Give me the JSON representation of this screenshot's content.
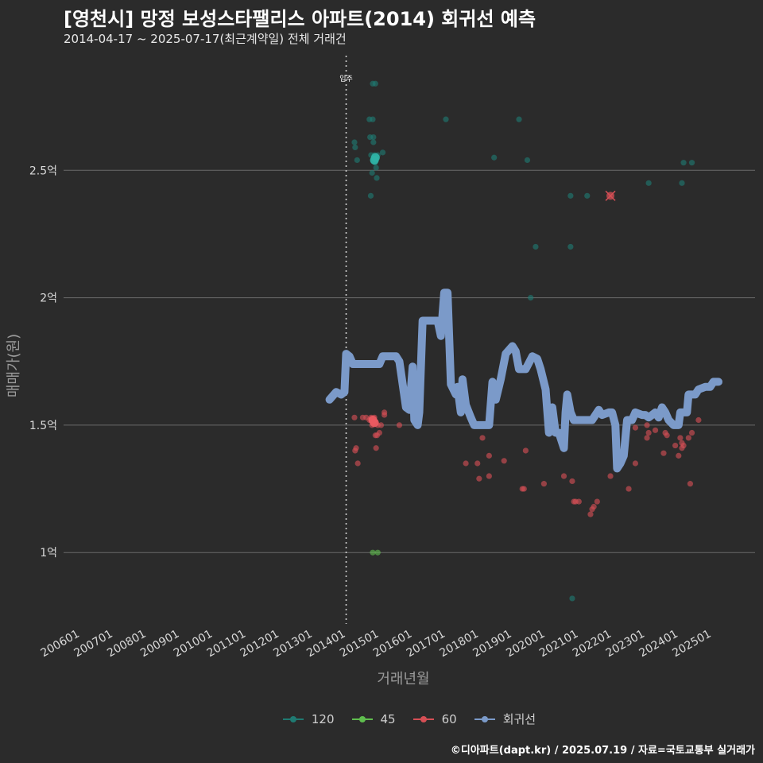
{
  "header": {
    "title": "[영천시] 망정 보성스타팰리스 아파트(2014) 회귀선 예측",
    "subtitle": "2014-04-17 ~ 2025-07-17(최근계약일) 전체 거래건"
  },
  "caption": "©디아파트(dapt.kr) / 2025.07.19 / 자료=국토교통부 실거래가",
  "chart_data": {
    "type": "scatter",
    "title": "[영천시] 망정 보성스타팰리스 아파트(2014) 회귀선 예측",
    "subtitle": "2014-04-17 ~ 2025-07-17(최근계약일) 전체 거래건",
    "xlabel": "거래년월",
    "ylabel": "매매가(원)",
    "x_ticks": [
      "200601",
      "200701",
      "200801",
      "200901",
      "201001",
      "201101",
      "201201",
      "201301",
      "201401",
      "201501",
      "201601",
      "201701",
      "201801",
      "201901",
      "202001",
      "202101",
      "202201",
      "202301",
      "202401",
      "202501"
    ],
    "x_range": [
      2005.5,
      2026.3
    ],
    "y_ticks": [
      1.0,
      1.5,
      2.0,
      2.5
    ],
    "y_tick_labels": [
      "1억",
      "1.5억",
      "2억",
      "2.5억"
    ],
    "y_unit": "억",
    "y_range": [
      0.72,
      2.95
    ],
    "grid": "horizontal",
    "legend_position": "bottom",
    "annotation": {
      "x": 2014.0,
      "label": "입주"
    },
    "colors": {
      "s120": "#1f7a72",
      "s45": "#5fbd4e",
      "s60": "#d64f55",
      "trend": "#7b9ac9",
      "background": "#2b2b2b",
      "grid": "#6a6a6a",
      "highlight120": "#2fb3a6"
    },
    "series": [
      {
        "name": "120",
        "color": "#1f7a72",
        "points": [
          [
            2014.25,
            2.61
          ],
          [
            2014.27,
            2.59
          ],
          [
            2014.33,
            2.54
          ],
          [
            2014.7,
            2.7
          ],
          [
            2014.72,
            2.63
          ],
          [
            2014.75,
            2.56
          ],
          [
            2014.78,
            2.49
          ],
          [
            2014.8,
            2.7
          ],
          [
            2014.82,
            2.63
          ],
          [
            2014.82,
            2.61
          ],
          [
            2014.85,
            2.56
          ],
          [
            2014.87,
            2.53
          ],
          [
            2014.9,
            2.51
          ],
          [
            2014.92,
            2.47
          ],
          [
            2014.95,
            2.56
          ],
          [
            2015.1,
            2.57
          ],
          [
            2014.74,
            2.4
          ],
          [
            2014.8,
            2.84
          ],
          [
            2014.88,
            2.84
          ],
          [
            2017.0,
            2.7
          ],
          [
            2018.45,
            2.55
          ],
          [
            2019.2,
            2.7
          ],
          [
            2019.45,
            2.54
          ],
          [
            2019.7,
            2.2
          ],
          [
            2019.55,
            2.0
          ],
          [
            2020.75,
            2.4
          ],
          [
            2020.75,
            2.2
          ],
          [
            2020.8,
            0.82
          ],
          [
            2021.25,
            2.4
          ],
          [
            2023.1,
            2.45
          ],
          [
            2024.1,
            2.45
          ],
          [
            2024.15,
            2.53
          ],
          [
            2024.4,
            2.53
          ]
        ]
      },
      {
        "name": "45",
        "color": "#5fbd4e",
        "points": [
          [
            2014.8,
            1.0
          ],
          [
            2014.95,
            1.0
          ]
        ]
      },
      {
        "name": "60",
        "color": "#d64f55",
        "points": [
          [
            2014.25,
            1.53
          ],
          [
            2014.27,
            1.4
          ],
          [
            2014.3,
            1.41
          ],
          [
            2014.35,
            1.35
          ],
          [
            2014.5,
            1.53
          ],
          [
            2014.6,
            1.53
          ],
          [
            2014.7,
            1.52
          ],
          [
            2014.75,
            1.53
          ],
          [
            2014.78,
            1.5
          ],
          [
            2014.8,
            1.51
          ],
          [
            2014.85,
            1.53
          ],
          [
            2014.88,
            1.46
          ],
          [
            2014.9,
            1.41
          ],
          [
            2014.93,
            1.46
          ],
          [
            2014.95,
            1.5
          ],
          [
            2015.0,
            1.47
          ],
          [
            2015.05,
            1.5
          ],
          [
            2015.15,
            1.55
          ],
          [
            2015.15,
            1.54
          ],
          [
            2015.6,
            1.5
          ],
          [
            2017.6,
            1.35
          ],
          [
            2017.95,
            1.35
          ],
          [
            2018.0,
            1.29
          ],
          [
            2018.1,
            1.45
          ],
          [
            2018.3,
            1.38
          ],
          [
            2018.3,
            1.3
          ],
          [
            2018.75,
            1.36
          ],
          [
            2019.3,
            1.25
          ],
          [
            2019.35,
            1.25
          ],
          [
            2019.4,
            1.4
          ],
          [
            2019.95,
            1.27
          ],
          [
            2020.55,
            1.3
          ],
          [
            2020.8,
            1.28
          ],
          [
            2020.85,
            1.2
          ],
          [
            2020.9,
            1.2
          ],
          [
            2021.0,
            1.2
          ],
          [
            2021.35,
            1.15
          ],
          [
            2021.4,
            1.17
          ],
          [
            2021.45,
            1.18
          ],
          [
            2021.55,
            1.2
          ],
          [
            2021.95,
            1.3
          ],
          [
            2022.5,
            1.25
          ],
          [
            2022.7,
            1.49
          ],
          [
            2022.7,
            1.35
          ],
          [
            2023.05,
            1.5
          ],
          [
            2023.05,
            1.45
          ],
          [
            2023.1,
            1.47
          ],
          [
            2023.3,
            1.48
          ],
          [
            2023.55,
            1.39
          ],
          [
            2023.6,
            1.47
          ],
          [
            2023.65,
            1.46
          ],
          [
            2023.9,
            1.42
          ],
          [
            2024.0,
            1.38
          ],
          [
            2024.05,
            1.45
          ],
          [
            2024.1,
            1.41
          ],
          [
            2024.1,
            1.43
          ],
          [
            2024.15,
            1.42
          ],
          [
            2024.3,
            1.45
          ],
          [
            2024.35,
            1.27
          ],
          [
            2024.4,
            1.47
          ],
          [
            2024.6,
            1.52
          ]
        ]
      },
      {
        "name": "회귀선",
        "color": "#7b9ac9",
        "line": [
          [
            2013.5,
            1.6
          ],
          [
            2013.7,
            1.63
          ],
          [
            2013.85,
            1.62
          ],
          [
            2013.95,
            1.63
          ],
          [
            2014.0,
            1.78
          ],
          [
            2014.1,
            1.77
          ],
          [
            2014.2,
            1.74
          ],
          [
            2014.4,
            1.74
          ],
          [
            2014.7,
            1.74
          ],
          [
            2014.9,
            1.74
          ],
          [
            2015.0,
            1.74
          ],
          [
            2015.1,
            1.77
          ],
          [
            2015.5,
            1.77
          ],
          [
            2015.6,
            1.75
          ],
          [
            2015.8,
            1.57
          ],
          [
            2015.9,
            1.56
          ],
          [
            2016.0,
            1.73
          ],
          [
            2016.05,
            1.52
          ],
          [
            2016.15,
            1.5
          ],
          [
            2016.2,
            1.55
          ],
          [
            2016.3,
            1.91
          ],
          [
            2016.5,
            1.91
          ],
          [
            2016.75,
            1.91
          ],
          [
            2016.85,
            1.85
          ],
          [
            2016.95,
            2.02
          ],
          [
            2017.05,
            2.02
          ],
          [
            2017.15,
            1.66
          ],
          [
            2017.3,
            1.62
          ],
          [
            2017.35,
            1.65
          ],
          [
            2017.45,
            1.55
          ],
          [
            2017.5,
            1.68
          ],
          [
            2017.6,
            1.58
          ],
          [
            2017.75,
            1.53
          ],
          [
            2017.85,
            1.5
          ],
          [
            2018.3,
            1.5
          ],
          [
            2018.4,
            1.67
          ],
          [
            2018.5,
            1.6
          ],
          [
            2018.65,
            1.68
          ],
          [
            2018.8,
            1.78
          ],
          [
            2019.0,
            1.81
          ],
          [
            2019.1,
            1.79
          ],
          [
            2019.2,
            1.72
          ],
          [
            2019.4,
            1.72
          ],
          [
            2019.6,
            1.77
          ],
          [
            2019.75,
            1.76
          ],
          [
            2019.85,
            1.72
          ],
          [
            2020.0,
            1.64
          ],
          [
            2020.1,
            1.47
          ],
          [
            2020.2,
            1.57
          ],
          [
            2020.3,
            1.47
          ],
          [
            2020.4,
            1.47
          ],
          [
            2020.55,
            1.41
          ],
          [
            2020.6,
            1.55
          ],
          [
            2020.65,
            1.62
          ],
          [
            2020.75,
            1.55
          ],
          [
            2020.85,
            1.52
          ],
          [
            2021.0,
            1.52
          ],
          [
            2021.4,
            1.52
          ],
          [
            2021.6,
            1.56
          ],
          [
            2021.7,
            1.54
          ],
          [
            2021.9,
            1.55
          ],
          [
            2022.0,
            1.55
          ],
          [
            2022.1,
            1.5
          ],
          [
            2022.15,
            1.33
          ],
          [
            2022.25,
            1.35
          ],
          [
            2022.35,
            1.38
          ],
          [
            2022.45,
            1.52
          ],
          [
            2022.6,
            1.52
          ],
          [
            2022.7,
            1.55
          ],
          [
            2022.9,
            1.54
          ],
          [
            2023.0,
            1.54
          ],
          [
            2023.1,
            1.53
          ],
          [
            2023.3,
            1.55
          ],
          [
            2023.4,
            1.53
          ],
          [
            2023.5,
            1.57
          ],
          [
            2023.6,
            1.55
          ],
          [
            2023.7,
            1.52
          ],
          [
            2023.85,
            1.5
          ],
          [
            2024.0,
            1.5
          ],
          [
            2024.05,
            1.55
          ],
          [
            2024.25,
            1.55
          ],
          [
            2024.3,
            1.62
          ],
          [
            2024.5,
            1.62
          ],
          [
            2024.6,
            1.64
          ],
          [
            2024.8,
            1.65
          ],
          [
            2024.95,
            1.65
          ],
          [
            2025.05,
            1.67
          ],
          [
            2025.2,
            1.67
          ]
        ]
      }
    ],
    "highlights": [
      {
        "series": "120",
        "x": 2014.85,
        "y": 2.54,
        "marker": "filled"
      },
      {
        "series": "120",
        "x": 2014.88,
        "y": 2.55,
        "marker": "filled"
      },
      {
        "series": "60",
        "x": 2014.8,
        "y": 1.52,
        "marker": "filled"
      },
      {
        "series": "60",
        "x": 2014.85,
        "y": 1.51,
        "marker": "filled"
      },
      {
        "series": "60",
        "x": 2021.95,
        "y": 2.4,
        "marker": "cross"
      }
    ]
  }
}
